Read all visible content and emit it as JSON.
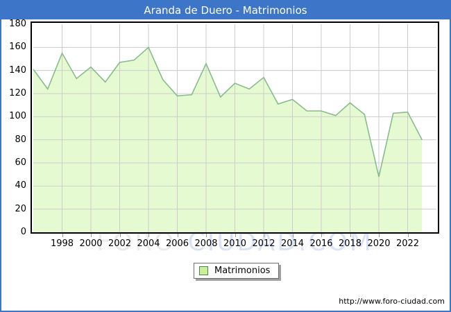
{
  "title": "Aranda de Duero - Matrimonios",
  "watermark": {
    "part1": "FORO-",
    "part2": "CIUDAD.COM"
  },
  "legend": {
    "label": "Matrimonios"
  },
  "footer": {
    "url": "http://www.foro-ciudad.com"
  },
  "colors": {
    "accent_blue": "#3d76c8",
    "area_fill": "#e6fad2",
    "line_green": "#87bb8f",
    "grid": "#cccccc",
    "legend_swatch": "#c8f096",
    "watermark_gray": "#e9e9e9",
    "watermark_blue": "#d7dff4",
    "axis_text": "#000000"
  },
  "chart_data": {
    "type": "area",
    "title": "Aranda de Duero - Matrimonios",
    "series_name": "Matrimonios",
    "x": [
      1996,
      1997,
      1998,
      1999,
      2000,
      2001,
      2002,
      2003,
      2004,
      2005,
      2006,
      2007,
      2008,
      2009,
      2010,
      2011,
      2012,
      2013,
      2014,
      2015,
      2016,
      2017,
      2018,
      2019,
      2020,
      2021,
      2022,
      2023
    ],
    "values": [
      141,
      124,
      155,
      133,
      143,
      130,
      147,
      149,
      160,
      132,
      118,
      119,
      146,
      117,
      129,
      124,
      134,
      111,
      115,
      105,
      105,
      101,
      112,
      102,
      48,
      103,
      104,
      80
    ],
    "xlim": [
      1996,
      2024
    ],
    "ylim": [
      0,
      180
    ],
    "yticks": [
      0,
      20,
      40,
      60,
      80,
      100,
      120,
      140,
      160,
      180
    ],
    "xticks": [
      1998,
      2000,
      2002,
      2004,
      2006,
      2008,
      2010,
      2012,
      2014,
      2016,
      2018,
      2020,
      2022
    ],
    "grid": true,
    "legend_position": "bottom-center",
    "xlabel": "",
    "ylabel": ""
  }
}
